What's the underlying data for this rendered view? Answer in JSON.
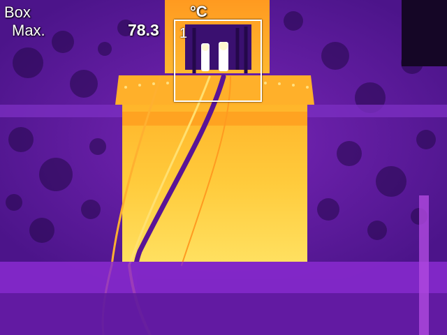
{
  "overlay": {
    "mode_label": "Box",
    "type_label": "Max.",
    "max_value": "78.3",
    "unit": "°C",
    "roi_index": "1"
  },
  "palette": {
    "background": "#3a0f6b",
    "cool": "#6a1fb0",
    "warm": "#f07a10",
    "hot": "#ffd04a",
    "hottest": "#ffffff"
  }
}
